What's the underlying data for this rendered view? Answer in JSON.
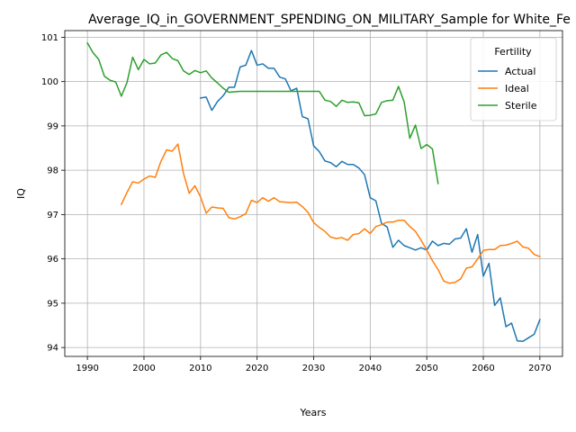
{
  "chart_data": {
    "type": "line",
    "title": "Average_IQ_in_GOVERNMENT_SPENDING_ON_MILITARY_Sample for White_Fe",
    "xlabel": "Years",
    "ylabel": "IQ",
    "xlim": [
      1986,
      2074
    ],
    "ylim": [
      93.8,
      101.15
    ],
    "xticks": [
      1990,
      2000,
      2010,
      2020,
      2030,
      2040,
      2050,
      2060,
      2070
    ],
    "yticks": [
      94,
      95,
      96,
      97,
      98,
      99,
      100,
      101
    ],
    "grid": true,
    "legend": {
      "title": "Fertility",
      "placement": "top-right"
    },
    "series": [
      {
        "name": "Actual",
        "color": "#1f77b4",
        "x": [
          2010,
          2011,
          2012,
          2013,
          2014,
          2015,
          2016,
          2017,
          2018,
          2019,
          2020,
          2021,
          2022,
          2023,
          2024,
          2025,
          2026,
          2027,
          2028,
          2029,
          2030,
          2031,
          2032,
          2033,
          2034,
          2035,
          2036,
          2037,
          2038,
          2039,
          2040,
          2041,
          2042,
          2043,
          2044,
          2045,
          2046,
          2047,
          2048,
          2049,
          2050,
          2051,
          2052,
          2053,
          2054,
          2055,
          2056,
          2057,
          2058,
          2059,
          2060,
          2061,
          2062,
          2063,
          2064,
          2065,
          2066,
          2067,
          2068,
          2069,
          2070
        ],
        "values": [
          99.63,
          99.65,
          99.35,
          99.55,
          99.68,
          99.87,
          99.87,
          100.33,
          100.37,
          100.7,
          100.37,
          100.4,
          100.3,
          100.3,
          100.1,
          100.06,
          99.79,
          99.85,
          99.21,
          99.16,
          98.55,
          98.42,
          98.21,
          98.17,
          98.08,
          98.2,
          98.13,
          98.13,
          98.05,
          97.9,
          97.38,
          97.31,
          96.8,
          96.72,
          96.26,
          96.42,
          96.3,
          96.25,
          96.2,
          96.25,
          96.2,
          96.4,
          96.3,
          96.35,
          96.33,
          96.45,
          96.47,
          96.68,
          96.15,
          96.55,
          95.61,
          95.9,
          94.95,
          95.12,
          94.47,
          94.55,
          94.15,
          94.14,
          94.22,
          94.3,
          94.63
        ]
      },
      {
        "name": "Ideal",
        "color": "#ff7f0e",
        "x": [
          1996,
          1997,
          1998,
          1999,
          2000,
          2001,
          2002,
          2003,
          2004,
          2005,
          2006,
          2007,
          2008,
          2009,
          2010,
          2011,
          2012,
          2013,
          2014,
          2015,
          2016,
          2017,
          2018,
          2019,
          2020,
          2021,
          2022,
          2023,
          2024,
          2025,
          2026,
          2027,
          2028,
          2029,
          2030,
          2031,
          2032,
          2033,
          2034,
          2035,
          2036,
          2037,
          2038,
          2039,
          2040,
          2041,
          2042,
          2043,
          2044,
          2045,
          2046,
          2047,
          2048,
          2049,
          2050,
          2051,
          2052,
          2053,
          2054,
          2055,
          2056,
          2057,
          2058,
          2059,
          2060,
          2061,
          2062,
          2063,
          2064,
          2065,
          2066,
          2067,
          2068,
          2069,
          2070
        ],
        "values": [
          97.23,
          97.5,
          97.74,
          97.71,
          97.8,
          97.87,
          97.84,
          98.2,
          98.46,
          98.43,
          98.59,
          97.92,
          97.48,
          97.65,
          97.4,
          97.03,
          97.17,
          97.15,
          97.14,
          96.93,
          96.9,
          96.95,
          97.02,
          97.32,
          97.27,
          97.38,
          97.3,
          97.38,
          97.29,
          97.28,
          97.27,
          97.28,
          97.18,
          97.05,
          96.82,
          96.71,
          96.62,
          96.49,
          96.46,
          96.48,
          96.42,
          96.55,
          96.57,
          96.68,
          96.57,
          96.73,
          96.77,
          96.83,
          96.83,
          96.87,
          96.87,
          96.73,
          96.62,
          96.42,
          96.2,
          95.96,
          95.76,
          95.5,
          95.45,
          95.47,
          95.55,
          95.79,
          95.82,
          96.0,
          96.19,
          96.21,
          96.21,
          96.3,
          96.31,
          96.35,
          96.4,
          96.27,
          96.24,
          96.1,
          96.05
        ]
      },
      {
        "name": "Sterile",
        "color": "#2ca02c",
        "x": [
          1990,
          1991,
          1992,
          1993,
          1994,
          1995,
          1996,
          1997,
          1998,
          1999,
          2000,
          2001,
          2002,
          2003,
          2004,
          2005,
          2006,
          2007,
          2008,
          2009,
          2010,
          2011,
          2012,
          2013,
          2014,
          2015,
          2016,
          2017,
          2018,
          2019,
          2020,
          2021,
          2022,
          2023,
          2024,
          2025,
          2026,
          2027,
          2028,
          2029,
          2030,
          2031,
          2032,
          2033,
          2034,
          2035,
          2036,
          2037,
          2038,
          2039,
          2040,
          2041,
          2042,
          2043,
          2044,
          2045,
          2046,
          2047,
          2048,
          2049,
          2050,
          2051,
          2052
        ],
        "values": [
          100.87,
          100.65,
          100.5,
          100.12,
          100.03,
          99.99,
          99.67,
          99.98,
          100.55,
          100.27,
          100.5,
          100.4,
          100.42,
          100.6,
          100.66,
          100.52,
          100.47,
          100.24,
          100.16,
          100.25,
          100.2,
          100.24,
          100.08,
          99.97,
          99.85,
          99.76,
          99.77,
          99.78,
          99.78,
          99.78,
          99.78,
          99.78,
          99.78,
          99.78,
          99.78,
          99.78,
          99.78,
          99.78,
          99.78,
          99.78,
          99.78,
          99.78,
          99.58,
          99.55,
          99.44,
          99.58,
          99.53,
          99.54,
          99.52,
          99.23,
          99.24,
          99.27,
          99.53,
          99.57,
          99.58,
          99.89,
          99.54,
          98.72,
          99.02,
          98.49,
          98.58,
          98.48,
          97.7
        ]
      }
    ]
  }
}
